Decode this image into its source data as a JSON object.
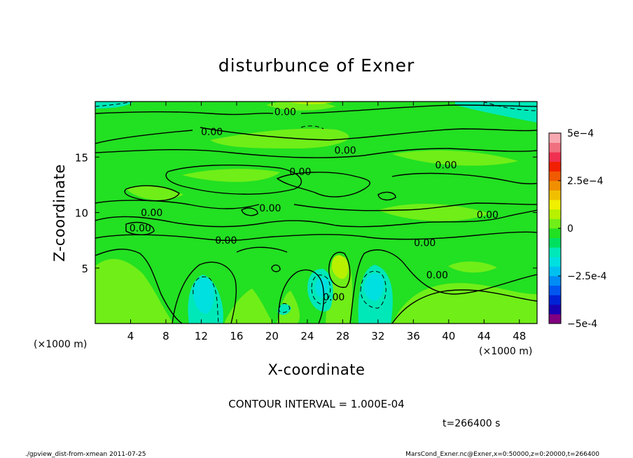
{
  "chart_data": {
    "type": "heatmap",
    "title": "disturbunce of Exner",
    "xlabel": "X-coordinate",
    "ylabel": "Z-coordinate",
    "x_unit_left": "(×1000 m)",
    "x_unit_right": "(×1000 m)",
    "xlim": [
      0,
      50
    ],
    "ylim": [
      0,
      20
    ],
    "x_ticks": [
      4,
      8,
      12,
      16,
      20,
      24,
      28,
      32,
      36,
      40,
      44,
      48
    ],
    "y_ticks": [
      5,
      10,
      15
    ],
    "contour_interval_text": "CONTOUR INTERVAL = 1.000E-04",
    "time_text": "t=266400 s",
    "contour_label": "0.00",
    "contour_labels": [
      {
        "x": 21.5,
        "z": 19.1
      },
      {
        "x": 13.2,
        "z": 17.3
      },
      {
        "x": 28.3,
        "z": 15.6
      },
      {
        "x": 23.2,
        "z": 13.7
      },
      {
        "x": 39.7,
        "z": 14.3
      },
      {
        "x": 19.8,
        "z": 10.4
      },
      {
        "x": 6.4,
        "z": 10.0
      },
      {
        "x": 44.4,
        "z": 9.8
      },
      {
        "x": 5.1,
        "z": 8.6
      },
      {
        "x": 14.8,
        "z": 7.5
      },
      {
        "x": 37.3,
        "z": 7.3
      },
      {
        "x": 38.7,
        "z": 4.4
      },
      {
        "x": 27.0,
        "z": 2.4
      }
    ],
    "colorbar": {
      "range": [
        -0.0005,
        0.0005
      ],
      "tick_labels": [
        {
          "value": 0.0005,
          "label": "5e-4"
        },
        {
          "value": 0.00025,
          "label": "2.5e-4"
        },
        {
          "value": 0,
          "label": "0"
        },
        {
          "value": -0.00025,
          "label": "-2.5e-4"
        },
        {
          "value": -0.0005,
          "label": "-5e-4"
        }
      ],
      "colors": [
        "#800080",
        "#1a00b3",
        "#0022d6",
        "#0057f0",
        "#008cf5",
        "#00c0f0",
        "#00e0e0",
        "#00e8b8",
        "#00e060",
        "#22e022",
        "#70ee18",
        "#b8f000",
        "#f0f000",
        "#f0c000",
        "#f09000",
        "#f05a00",
        "#f02000",
        "#f03050",
        "#f07080",
        "#f8a8b0"
      ]
    }
  },
  "footer": {
    "left": "./gpview_dist-from-xmean  2011-07-25",
    "right": "MarsCond_Exner.nc@Exner,x=0:50000,z=0:20000,t=266400"
  }
}
